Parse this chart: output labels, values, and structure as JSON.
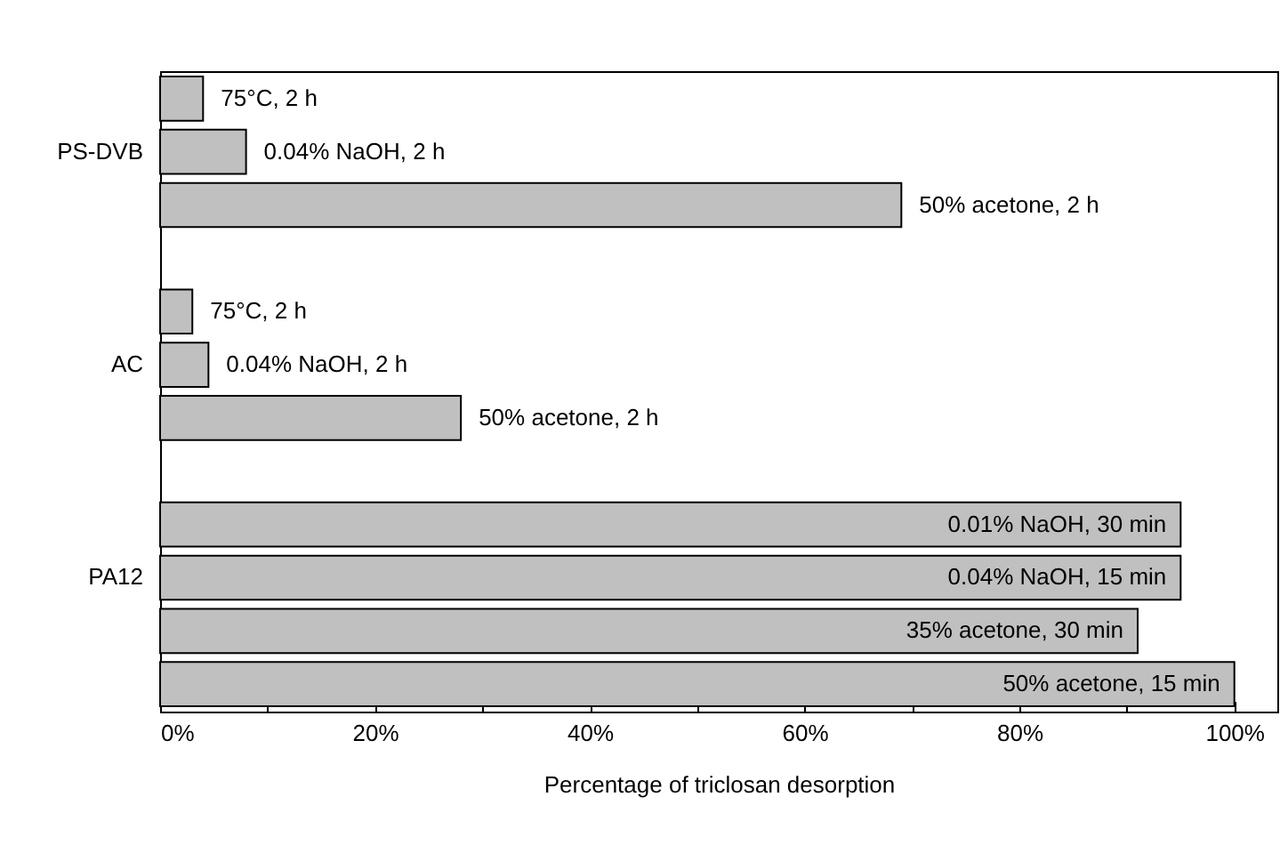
{
  "chart_data": {
    "type": "bar",
    "orientation": "horizontal",
    "xlabel": "Percentage of triclosan desorption",
    "categories": [
      null,
      "PS-DVB",
      null,
      null,
      null,
      "AC",
      null,
      null,
      null,
      "PA12",
      null,
      null
    ],
    "values": [
      4,
      8,
      69,
      null,
      3,
      4.5,
      28,
      null,
      95,
      95,
      91,
      100
    ],
    "annotations": [
      {
        "text": "75°C, 2 h",
        "x": 4
      },
      {
        "text": "0.04% NaOH, 2 h",
        "x": 8
      },
      {
        "text": "50% acetone, 2 h",
        "x": 69
      },
      {
        "text": "75°C, 2 h",
        "x": 3
      },
      {
        "text": "0.04% NaOH, 2 h",
        "x": 4.5
      },
      {
        "text": "50% acetone, 2 h",
        "x": 28
      },
      {
        "text": "0.01% NaOH, 30 min",
        "x": 95
      },
      {
        "text": "0.04% NaOH, 15 min",
        "x": 95
      },
      {
        "text": "35% acetone, 30 min",
        "x": 91
      },
      {
        "text": "50% acetone, 15 min",
        "x": 100
      }
    ],
    "color": "#c0c0c0",
    "xlim": [
      0,
      104
    ],
    "xticks": [
      {
        "value": 0,
        "label": "0%"
      },
      {
        "value": 10,
        "label": null
      },
      {
        "value": 20,
        "label": "20%"
      },
      {
        "value": 30,
        "label": null
      },
      {
        "value": 40,
        "label": "40%"
      },
      {
        "value": 50,
        "label": null
      },
      {
        "value": 60,
        "label": "60%"
      },
      {
        "value": 70,
        "label": null
      },
      {
        "value": 80,
        "label": "80%"
      },
      {
        "value": 90,
        "label": null
      },
      {
        "value": 100,
        "label": "100%"
      }
    ],
    "grid": false
  }
}
